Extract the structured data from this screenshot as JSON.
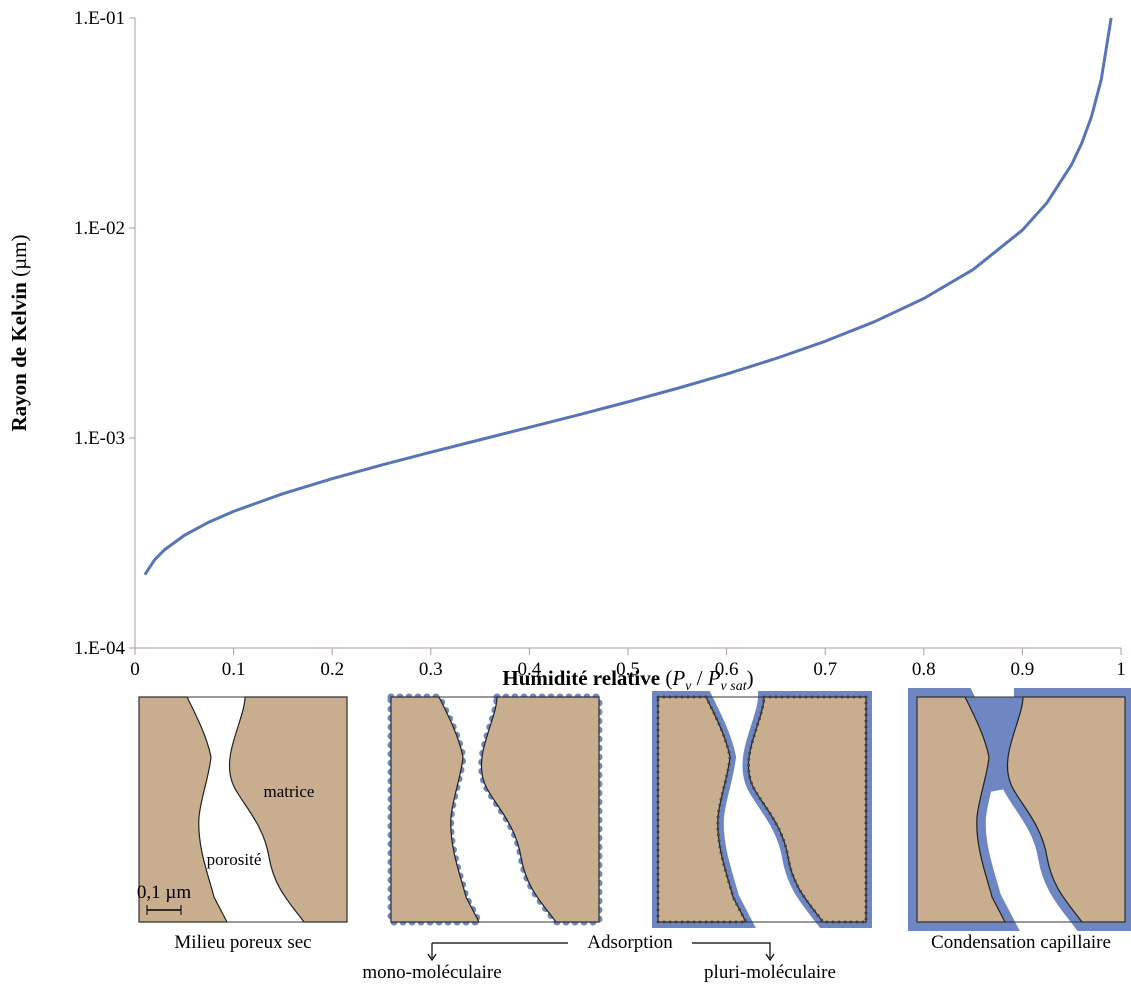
{
  "chart_data": {
    "type": "line",
    "color": "#5874b8",
    "log_y": true,
    "ylabel": [
      "Rayon de Kelvin",
      " (µm)"
    ],
    "xlabel": [
      "Humidité relative",
      " (",
      "P",
      "v",
      " / ",
      "P",
      "v sat",
      ")"
    ],
    "x": [
      0.01,
      0.02,
      0.03,
      0.05,
      0.075,
      0.1,
      0.15,
      0.2,
      0.25,
      0.3,
      0.35,
      0.4,
      0.45,
      0.5,
      0.55,
      0.6,
      0.65,
      0.7,
      0.75,
      0.8,
      0.85,
      0.9,
      0.925,
      0.95,
      0.96,
      0.97,
      0.98,
      0.99
    ],
    "values": [
      0.0002237,
      0.0002633,
      0.0002937,
      0.0003438,
      0.0003977,
      0.0004473,
      0.000543,
      0.00064,
      0.000743,
      0.0008555,
      0.000981,
      0.001124,
      0.00129,
      0.001486,
      0.001723,
      0.002016,
      0.002391,
      0.002888,
      0.00358,
      0.004616,
      0.006338,
      0.009776,
      0.01321,
      0.02008,
      0.02523,
      0.03382,
      0.05099,
      0.1
    ],
    "xlim": [
      0,
      1
    ],
    "xticks": [
      0,
      0.1,
      0.2,
      0.3,
      0.4,
      0.5,
      0.6,
      0.7,
      0.8,
      0.9,
      1
    ],
    "ylim": [
      0.0001,
      0.1
    ],
    "yticks": [
      {
        "value": 0.0001,
        "label": "1.E-04"
      },
      {
        "value": 0.001,
        "label": "1.E-03"
      },
      {
        "value": 0.01,
        "label": "1.E-02"
      },
      {
        "value": 0.1,
        "label": "1.E-01"
      }
    ]
  },
  "diagram": {
    "panels": [
      "Milieu poreux sec",
      "Condensation capillaire"
    ],
    "adsorption": "Adsorption",
    "mono": "mono-moléculaire",
    "pluri": "pluri-moléculaire",
    "matrice": "matrice",
    "porosite": "porosité",
    "scale": "0,1 µm"
  }
}
